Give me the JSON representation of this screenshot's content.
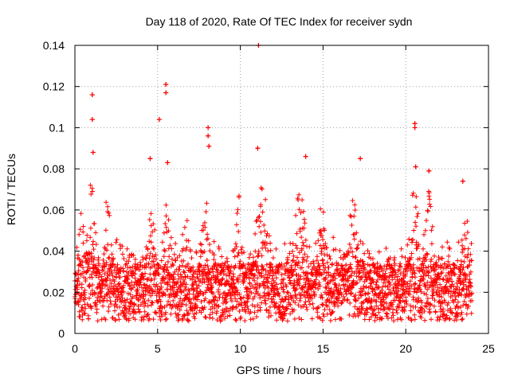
{
  "chart_data": {
    "type": "scatter",
    "title": "Day 118 of 2020, Rate Of TEC Index for receiver sydn",
    "xlabel": "GPS time / hours",
    "ylabel": "ROTI / TECUs",
    "xlim": [
      0,
      25
    ],
    "ylim": [
      0,
      0.14
    ],
    "xticks": [
      0,
      5,
      10,
      15,
      20,
      25
    ],
    "yticks": [
      0,
      0.02,
      0.04,
      0.06,
      0.08,
      0.1,
      0.12,
      0.14
    ],
    "xtick_labels": [
      "0",
      "5",
      "10",
      "15",
      "20",
      "25"
    ],
    "ytick_labels": [
      "0",
      "0.02",
      "0.04",
      "0.06",
      "0.08",
      "0.1",
      "0.12",
      "0.14"
    ],
    "grid": true,
    "marker": "+",
    "series_color": "#ff0000",
    "data_span_hours": [
      0,
      24
    ],
    "typical_band": [
      0.01,
      0.03
    ],
    "notable_points": [
      {
        "x": 1.05,
        "y": 0.116
      },
      {
        "x": 1.05,
        "y": 0.104
      },
      {
        "x": 1.1,
        "y": 0.088
      },
      {
        "x": 4.55,
        "y": 0.085
      },
      {
        "x": 5.1,
        "y": 0.104
      },
      {
        "x": 5.5,
        "y": 0.121
      },
      {
        "x": 5.5,
        "y": 0.117
      },
      {
        "x": 5.6,
        "y": 0.083
      },
      {
        "x": 8.05,
        "y": 0.1
      },
      {
        "x": 8.05,
        "y": 0.096
      },
      {
        "x": 8.1,
        "y": 0.091
      },
      {
        "x": 11.1,
        "y": 0.14
      },
      {
        "x": 11.05,
        "y": 0.09
      },
      {
        "x": 13.95,
        "y": 0.086
      },
      {
        "x": 17.25,
        "y": 0.085
      },
      {
        "x": 20.55,
        "y": 0.102
      },
      {
        "x": 20.55,
        "y": 0.1
      },
      {
        "x": 20.6,
        "y": 0.081
      },
      {
        "x": 21.4,
        "y": 0.079
      },
      {
        "x": 23.45,
        "y": 0.074
      }
    ],
    "bursts": [
      {
        "center": 0.4,
        "width": 0.35,
        "peak": 0.06
      },
      {
        "center": 1.0,
        "width": 0.4,
        "peak": 0.075
      },
      {
        "center": 2.0,
        "width": 0.4,
        "peak": 0.07
      },
      {
        "center": 4.6,
        "width": 0.4,
        "peak": 0.07
      },
      {
        "center": 5.6,
        "width": 0.4,
        "peak": 0.068
      },
      {
        "center": 7.9,
        "width": 0.4,
        "peak": 0.07
      },
      {
        "center": 9.9,
        "width": 0.3,
        "peak": 0.068
      },
      {
        "center": 11.3,
        "width": 0.7,
        "peak": 0.075
      },
      {
        "center": 13.6,
        "width": 0.6,
        "peak": 0.07
      },
      {
        "center": 14.9,
        "width": 0.5,
        "peak": 0.065
      },
      {
        "center": 16.8,
        "width": 0.5,
        "peak": 0.068
      },
      {
        "center": 20.5,
        "width": 0.5,
        "peak": 0.075
      },
      {
        "center": 21.4,
        "width": 0.5,
        "peak": 0.07
      },
      {
        "center": 23.6,
        "width": 0.35,
        "peak": 0.065
      }
    ]
  }
}
